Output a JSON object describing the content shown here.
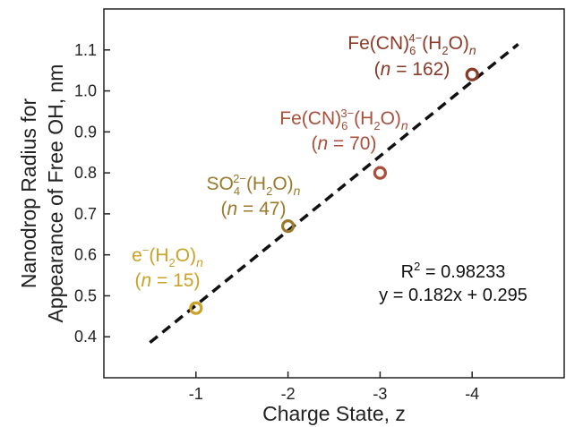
{
  "chart_data": {
    "type": "scatter",
    "xlabel": "Charge State, z",
    "ylabel_line1": "Nanodrop Radius for",
    "ylabel_line2": "Appearance of Free OH, nm",
    "xlim": [
      -0.0,
      -5.0
    ],
    "ylim": [
      0.3,
      1.2
    ],
    "x_ticks": [
      -1,
      -2,
      -3,
      -4
    ],
    "x_tick_labels": [
      "-1",
      "-2",
      "-3",
      "-4"
    ],
    "y_ticks": [
      0.4,
      0.5,
      0.6,
      0.7,
      0.8,
      0.9,
      1.0,
      1.1
    ],
    "y_tick_labels": [
      "0.4",
      "0.5",
      "0.6",
      "0.7",
      "0.8",
      "0.9",
      "1.0",
      "1.1"
    ],
    "points": [
      {
        "x": -1,
        "y": 0.47,
        "color": "#c9a227",
        "label": {
          "species": "e",
          "sup": "−",
          "water": "(H",
          "sub2": "2",
          "water_end": "O)",
          "n": "n",
          "count": "(n = 15)"
        }
      },
      {
        "x": -2,
        "y": 0.67,
        "color": "#9a7a2a",
        "label": {
          "species": "SO",
          "sub": "4",
          "sup": "2−",
          "water": "(H",
          "sub2": "2",
          "water_end": "O)",
          "n": "n",
          "count": "(n = 47)"
        }
      },
      {
        "x": -3,
        "y": 0.8,
        "color": "#a8503c",
        "label": {
          "species": "Fe(CN)",
          "sub": "6",
          "sup": "3−",
          "water": "(H",
          "sub2": "2",
          "water_end": "O)",
          "n": "n",
          "count": "(n = 70)"
        }
      },
      {
        "x": -4,
        "y": 1.04,
        "color": "#8a3a26",
        "label": {
          "species": "Fe(CN)",
          "sub": "6",
          "sup": "4−",
          "water": "(H",
          "sub2": "2",
          "water_end": "O)",
          "n": "n",
          "count": "(n = 162)"
        }
      }
    ],
    "fit": {
      "slope": 0.182,
      "intercept": 0.295,
      "x_range": [
        -0.5,
        -4.5
      ],
      "color": "#111111",
      "r2_text": "R",
      "r2_sup": "2",
      "r2_value": " = 0.98233",
      "equation": "y = 0.182x + 0.295"
    },
    "grid": false,
    "legend": "none"
  }
}
